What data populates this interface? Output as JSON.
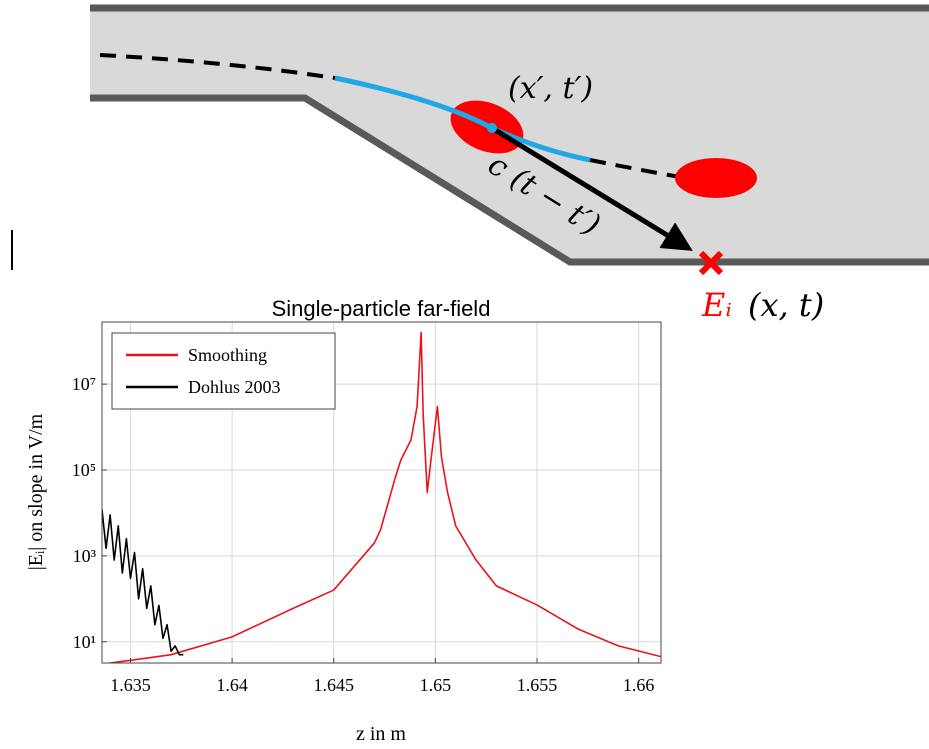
{
  "diagram": {
    "source_label": "(x′, t′)",
    "distance_label": "c (t − t′)",
    "target_field": "Eᵢ",
    "target_args": "(x, t)"
  },
  "chart_data": {
    "type": "line",
    "title": "Single-particle far-field",
    "x_label": "z in m",
    "y_label": "|Eᵢ| on slope in V/m",
    "xlim": [
      1.6336,
      1.6611
    ],
    "xticks": [
      1.635,
      1.64,
      1.645,
      1.65,
      1.655,
      1.66
    ],
    "ylim": [
      3.2,
      280000000
    ],
    "log_y": true,
    "yticks": [
      {
        "value": 10,
        "label": "10¹"
      },
      {
        "value": 1000,
        "label": "10³"
      },
      {
        "value": 100000,
        "label": "10⁵"
      },
      {
        "value": 10000000,
        "label": "10⁷"
      }
    ],
    "grid": true,
    "legend": "upper-left",
    "series": [
      {
        "name": "Smoothing",
        "color": "#e8141b",
        "x": [
          1.6336,
          1.637,
          1.64,
          1.643,
          1.645,
          1.647,
          1.6473,
          1.648,
          1.6483,
          1.6488,
          1.6491,
          1.6493,
          1.6494,
          1.6496,
          1.6498,
          1.6501,
          1.6503,
          1.6506,
          1.651,
          1.652,
          1.653,
          1.655,
          1.657,
          1.659,
          1.6611
        ],
        "values": [
          3,
          5,
          13,
          60,
          160,
          2000,
          4000,
          60000,
          170000,
          500000,
          3000000,
          160000000,
          2000000,
          30000,
          200000,
          3000000,
          200000,
          30000,
          5000,
          800,
          200,
          72,
          20,
          8,
          4.5
        ]
      },
      {
        "name": "Dohlus 2003",
        "color": "#000000",
        "x": [
          1.6336,
          1.6338,
          1.634,
          1.6342,
          1.6344,
          1.6346,
          1.6348,
          1.635,
          1.6352,
          1.6354,
          1.6356,
          1.6358,
          1.636,
          1.6362,
          1.6364,
          1.6366,
          1.6368,
          1.637,
          1.6372,
          1.6374,
          1.6376
        ],
        "values": [
          12000,
          1500,
          9000,
          800,
          5000,
          400,
          2500,
          300,
          1200,
          100,
          500,
          60,
          200,
          25,
          70,
          12,
          25,
          6,
          8,
          5,
          5
        ]
      }
    ]
  }
}
